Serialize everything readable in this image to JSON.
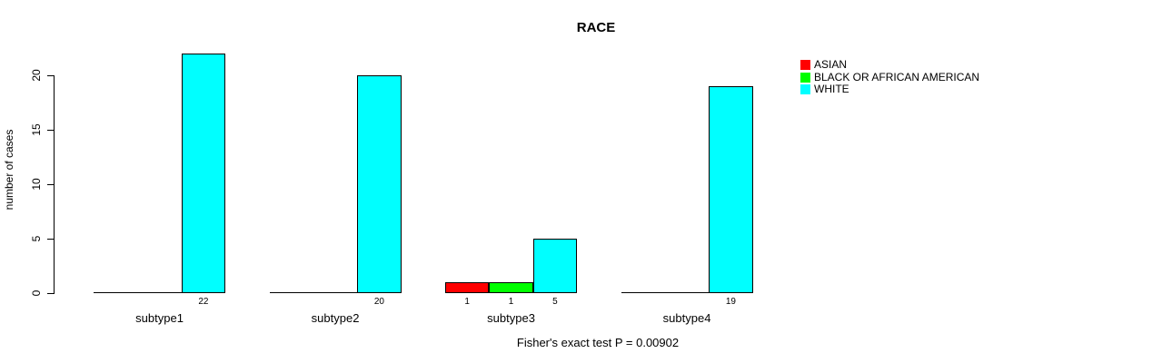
{
  "chart_data": {
    "type": "bar",
    "grouped": true,
    "title": "RACE",
    "xlabel": "",
    "ylabel": "number of cases",
    "categories": [
      "subtype1",
      "subtype2",
      "subtype3",
      "subtype4"
    ],
    "series": [
      {
        "name": "ASIAN",
        "color": "#ff0000",
        "values": [
          0,
          0,
          1,
          0
        ]
      },
      {
        "name": "BLACK OR AFRICAN AMERICAN",
        "color": "#00ff00",
        "values": [
          0,
          0,
          1,
          0
        ]
      },
      {
        "name": "WHITE",
        "color": "#00ffff",
        "values": [
          22,
          20,
          5,
          19
        ]
      }
    ],
    "bar_value_labels": [
      {
        "category": "subtype1",
        "labels": [
          "22"
        ]
      },
      {
        "category": "subtype2",
        "labels": [
          "20"
        ]
      },
      {
        "category": "subtype3",
        "labels": [
          "1",
          "1",
          "5"
        ]
      },
      {
        "category": "subtype4",
        "labels": [
          "19"
        ]
      }
    ],
    "yticks": [
      0,
      5,
      10,
      15,
      20
    ],
    "ylim": [
      0,
      22
    ],
    "grid": false,
    "legend_position": "outside-top-right",
    "caption": "Fisher's exact test P = 0.00902",
    "colors": {
      "background": "#ffffff",
      "text": "#000000",
      "bar_border": "#000000",
      "axis": "#000000"
    }
  }
}
